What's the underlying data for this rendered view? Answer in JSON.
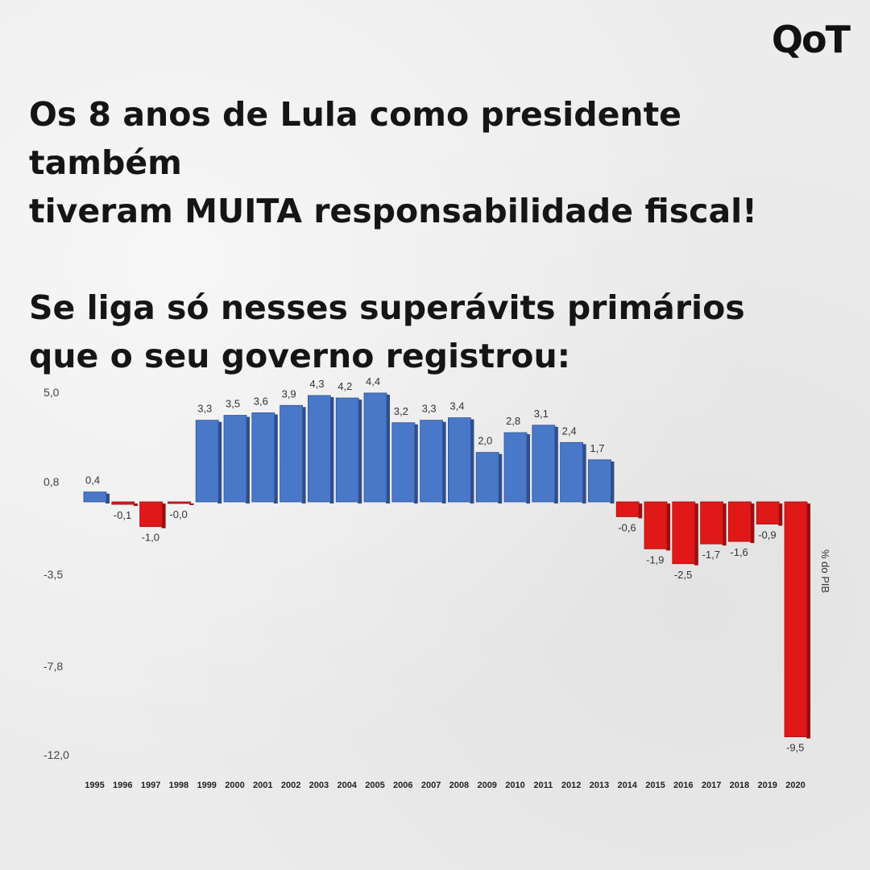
{
  "brand": {
    "logo_text": "QoT"
  },
  "headline": {
    "line1": "Os 8 anos de Lula como presidente também",
    "line2": "tiveram MUITA responsabilidade fiscal!",
    "line3": "Se liga só nesses superávits primários",
    "line4": "que o seu governo registrou:"
  },
  "colors": {
    "positive": "#4a78c8",
    "negative": "#e01818",
    "background": "#ececec"
  },
  "chart_data": {
    "type": "bar",
    "title": "",
    "xlabel": "",
    "ylabel": "% do PIB",
    "ylim": [
      -12.0,
      5.0
    ],
    "y_ticks": [
      "5,0",
      "0,8",
      "-3,5",
      "-7,8",
      "-12,0"
    ],
    "y_tick_values": [
      5.0,
      0.8,
      -3.5,
      -7.8,
      -12.0
    ],
    "grid": false,
    "legend": "none",
    "categories": [
      "1995",
      "1996",
      "1997",
      "1998",
      "1999",
      "2000",
      "2001",
      "2002",
      "2003",
      "2004",
      "2005",
      "2006",
      "2007",
      "2008",
      "2009",
      "2010",
      "2011",
      "2012",
      "2013",
      "2014",
      "2015",
      "2016",
      "2017",
      "2018",
      "2019",
      "2020"
    ],
    "values": [
      0.4,
      -0.1,
      -1.0,
      -0.0,
      3.3,
      3.5,
      3.6,
      3.9,
      4.3,
      4.2,
      4.4,
      3.2,
      3.3,
      3.4,
      2.0,
      2.8,
      3.1,
      2.4,
      1.7,
      -0.6,
      -1.9,
      -2.5,
      -1.7,
      -1.6,
      -0.9,
      -9.5
    ],
    "value_labels": [
      "0,4",
      "-0,1",
      "-1,0",
      "-0,0",
      "3,3",
      "3,5",
      "3,6",
      "3,9",
      "4,3",
      "4,2",
      "4,4",
      "3,2",
      "3,3",
      "3,4",
      "2,0",
      "2,8",
      "3,1",
      "2,4",
      "1,7",
      "-0,6",
      "-1,9",
      "-2,5",
      "-1,7",
      "-1,6",
      "-0,9",
      "-9,5"
    ]
  }
}
